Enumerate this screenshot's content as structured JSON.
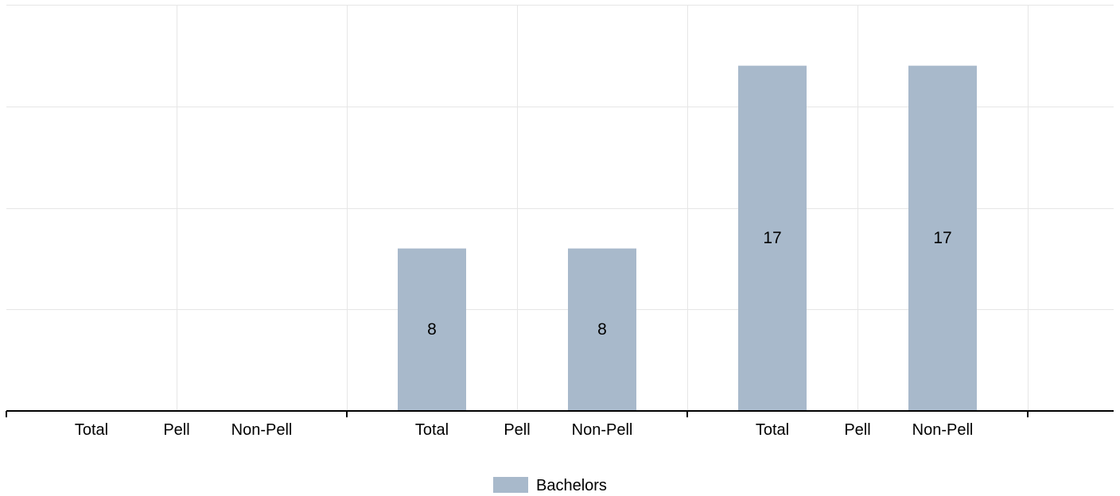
{
  "chart_data": {
    "type": "bar",
    "title": "",
    "xlabel": "",
    "ylabel": "",
    "groups": [
      {
        "categories": [
          "Total",
          "Pell",
          "Non-Pell"
        ]
      },
      {
        "categories": [
          "Total",
          "Pell",
          "Non-Pell"
        ]
      },
      {
        "categories": [
          "Total",
          "Pell",
          "Non-Pell"
        ]
      }
    ],
    "series": [
      {
        "name": "Bachelors",
        "color": "#a8b9cb",
        "values": [
          [
            null,
            null,
            null
          ],
          [
            8,
            null,
            8
          ],
          [
            17,
            null,
            17
          ]
        ]
      }
    ],
    "data_labels": true,
    "ylim": [
      0,
      20
    ],
    "gridlines": [
      0,
      5,
      10,
      15,
      20
    ],
    "grid": true,
    "legend_position": "bottom-center"
  }
}
